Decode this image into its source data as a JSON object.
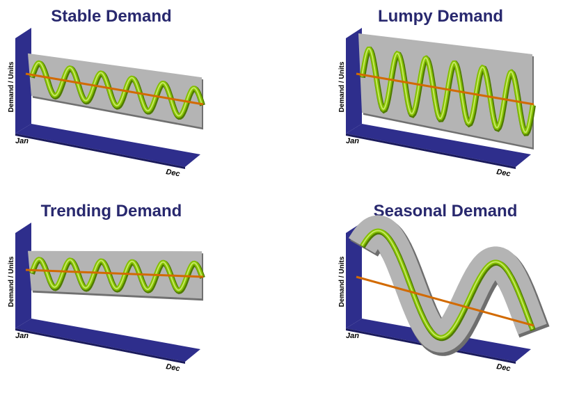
{
  "panels": [
    {
      "title": "Stable Demand",
      "y_label": "Demand / Units",
      "x_start": "Jan",
      "x_end": "Dec"
    },
    {
      "title": "Lumpy Demand",
      "y_label": "Demand / Units",
      "x_start": "Jan",
      "x_end": "Dec"
    },
    {
      "title": "Trending Demand",
      "y_label": "Demand / Units",
      "x_start": "Jan",
      "x_end": "Dec"
    },
    {
      "title": "Seasonal Demand",
      "y_label": "Demand / Units",
      "x_start": "Jan",
      "x_end": "Dec"
    }
  ]
}
